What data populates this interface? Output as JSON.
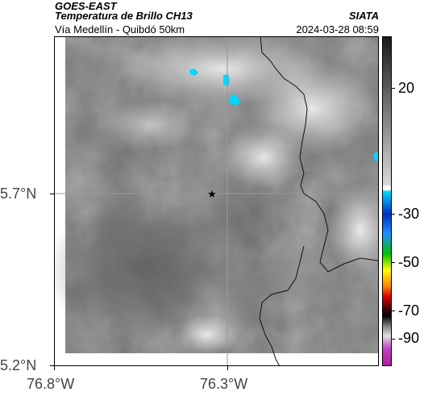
{
  "header": {
    "satellite": "GOES-EAST",
    "product": "Temperatura de Brillo CH13",
    "route": "Vía Medellín - Quibdó 50km",
    "org": "SIATA",
    "timestamp": "2024-03-28 08:59"
  },
  "axes": {
    "lat_labels": [
      "5.7°N",
      "5.2°N"
    ],
    "lon_labels": [
      "76.8°W",
      "76.3°W"
    ]
  },
  "colorbar": {
    "labels": [
      "20",
      "-30",
      "-50",
      "-70",
      "-90"
    ],
    "colors": {
      "gray_top": "#1a1a1a",
      "gray_bottom": "#d9d9d9",
      "cyan": "#00d8ff",
      "blue": "#0030c0",
      "green": "#00c000",
      "yellow": "#ffff00",
      "red": "#e00000",
      "black": "#000000",
      "magenta": "#c040c0"
    }
  },
  "map": {
    "marker": "star",
    "background_gray": "#6e6e6e"
  }
}
